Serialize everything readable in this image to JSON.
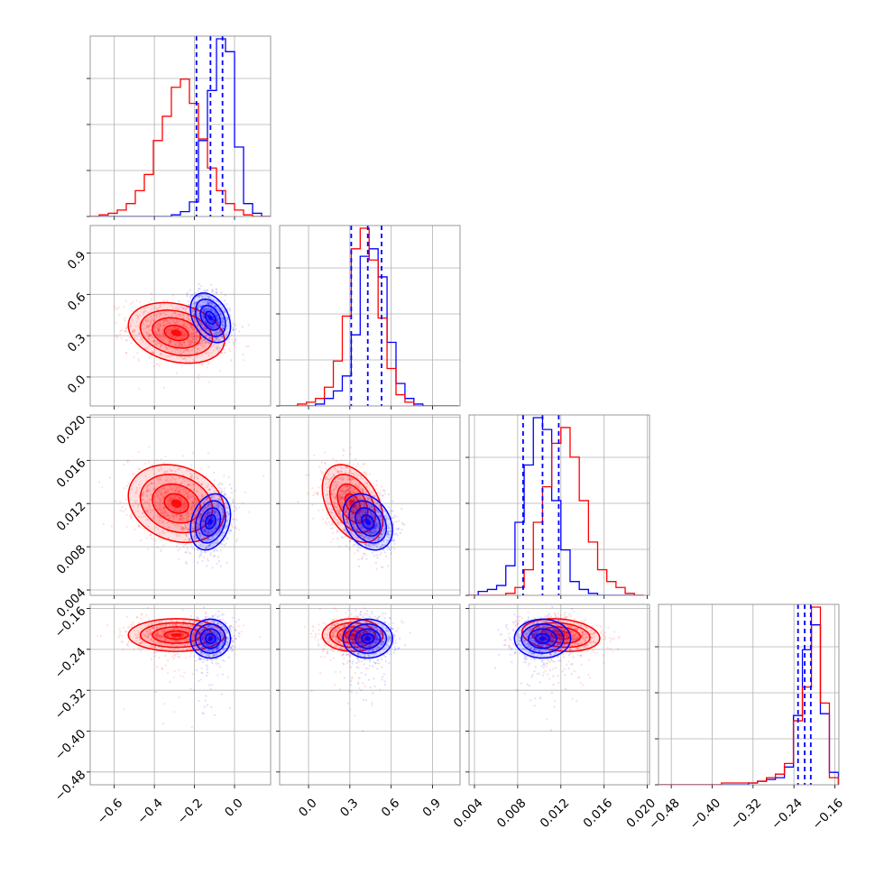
{
  "chart_data": {
    "type": "corner",
    "grid": true,
    "series": [
      {
        "name": "",
        "color": "#0000ff"
      },
      {
        "name": "",
        "color": "#ff0000"
      }
    ],
    "params": [
      {
        "range": [
          -0.72,
          0.18
        ],
        "ticks": [
          -0.6,
          -0.4,
          -0.2,
          0.0
        ],
        "tick_labels": [
          "−0.6",
          "−0.4",
          "−0.2",
          "0.0"
        ]
      },
      {
        "range": [
          -0.21,
          1.1
        ],
        "ticks": [
          0.0,
          0.3,
          0.6,
          0.9
        ],
        "tick_labels": [
          "0.0",
          "0.3",
          "0.6",
          "0.9"
        ]
      },
      {
        "range": [
          0.0035,
          0.0202
        ],
        "ticks": [
          0.004,
          0.008,
          0.012,
          0.016,
          0.02
        ],
        "tick_labels": [
          "0.004",
          "0.008",
          "0.012",
          "0.016",
          "0.020"
        ]
      },
      {
        "range": [
          -0.505,
          -0.152
        ],
        "ticks": [
          -0.48,
          -0.4,
          -0.32,
          -0.24,
          -0.16
        ],
        "tick_labels": [
          "−0.48",
          "−0.40",
          "−0.32",
          "−0.24",
          "−0.16"
        ]
      }
    ],
    "quantiles": [
      [
        -0.19,
        -0.12,
        -0.06
      ],
      [
        0.31,
        0.43,
        0.53
      ],
      [
        0.0085,
        0.0103,
        0.0118
      ],
      [
        -0.232,
        -0.219,
        -0.207
      ]
    ],
    "histograms": [
      {
        "bin_edges": [
          -0.72,
          -0.675,
          -0.63,
          -0.585,
          -0.54,
          -0.495,
          -0.45,
          -0.405,
          -0.36,
          -0.315,
          -0.27,
          -0.225,
          -0.18,
          -0.135,
          -0.09,
          -0.045,
          0.0,
          0.045,
          0.09,
          0.135,
          0.18
        ],
        "blue": [
          0,
          0,
          0,
          0,
          0,
          0,
          0,
          0,
          0,
          1,
          3,
          9,
          47,
          78,
          110,
          102,
          43,
          8,
          2,
          0
        ],
        "red": [
          0,
          1,
          2,
          4,
          8,
          16,
          26,
          47,
          62,
          80,
          85,
          70,
          48,
          30,
          16,
          8,
          4,
          1,
          0,
          0
        ]
      },
      {
        "bin_edges": [
          -0.21,
          -0.145,
          -0.08,
          -0.015,
          0.05,
          0.115,
          0.18,
          0.245,
          0.31,
          0.375,
          0.44,
          0.505,
          0.57,
          0.635,
          0.7,
          0.765,
          0.83,
          0.895,
          0.96,
          1.025,
          1.09
        ],
        "blue": [
          0,
          0,
          0,
          0,
          1,
          4,
          8,
          16,
          38,
          80,
          84,
          69,
          34,
          12,
          4,
          1,
          0,
          0,
          0,
          0
        ],
        "red": [
          0,
          0,
          1,
          2,
          4,
          10,
          24,
          48,
          84,
          95,
          78,
          47,
          20,
          6,
          2,
          0,
          0,
          0,
          0,
          0
        ]
      },
      {
        "bin_edges": [
          0.0035,
          0.00435,
          0.0052,
          0.00605,
          0.0069,
          0.00775,
          0.0086,
          0.00945,
          0.0103,
          0.01115,
          0.012,
          0.01285,
          0.0137,
          0.01455,
          0.0154,
          0.01625,
          0.0171,
          0.01795,
          0.0188,
          0.01965
        ],
        "blue": [
          0,
          2,
          3,
          5,
          15,
          37,
          66,
          90,
          84,
          48,
          23,
          7,
          3,
          1,
          0,
          0,
          0,
          0,
          0
        ],
        "red": [
          0,
          0,
          0,
          0,
          1,
          4,
          13,
          37,
          55,
          77,
          85,
          70,
          48,
          27,
          13,
          7,
          4,
          1,
          0
        ]
      },
      {
        "bin_edges": [
          -0.505,
          -0.4874,
          -0.4698,
          -0.4522,
          -0.4346,
          -0.417,
          -0.3994,
          -0.3818,
          -0.3642,
          -0.3466,
          -0.329,
          -0.3114,
          -0.2938,
          -0.2762,
          -0.2586,
          -0.241,
          -0.2234,
          -0.2058,
          -0.1882,
          -0.1706,
          -0.153
        ],
        "blue": [
          0,
          0,
          0,
          0,
          0,
          0,
          0,
          0,
          0,
          0,
          1,
          2,
          3,
          4,
          10,
          39,
          76,
          90,
          40,
          7
        ],
        "red": [
          0,
          0,
          0,
          0,
          0,
          0,
          0,
          1,
          1,
          1,
          1,
          2,
          4,
          6,
          12,
          36,
          55,
          100,
          46,
          4
        ]
      }
    ],
    "distributions": {
      "blue": {
        "mean": [
          -0.12,
          0.43,
          0.0103,
          -0.219
        ],
        "sd": [
          0.05,
          0.09,
          0.0013,
          0.019
        ]
      },
      "red": {
        "mean": [
          -0.29,
          0.32,
          0.012,
          -0.212
        ],
        "sd": [
          0.12,
          0.11,
          0.0018,
          0.016
        ]
      }
    },
    "correlations": {
      "blue": {
        "1-0": -0.35,
        "2-0": 0.25,
        "2-1": -0.3,
        "3-0": 0.0,
        "3-1": 0.0,
        "3-2": 0.0
      },
      "red": {
        "1-0": -0.25,
        "2-0": -0.2,
        "2-1": -0.4,
        "3-0": 0.0,
        "3-1": 0.0,
        "3-2": -0.2
      }
    }
  }
}
